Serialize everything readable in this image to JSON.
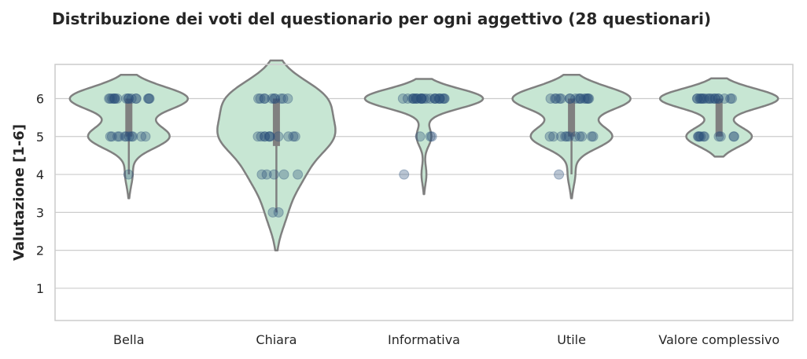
{
  "chart_data": {
    "type": "violin",
    "title": "Distribuzione dei voti del questionario per ogni aggettivo (28 questionari)",
    "xlabel": "",
    "ylabel": "Valutazione [1-6]",
    "ylim": [
      0.15,
      6.9
    ],
    "yticks": [
      1,
      2,
      3,
      4,
      5,
      6
    ],
    "grid": true,
    "categories": [
      "Bella",
      "Chiara",
      "Informativa",
      "Utile",
      "Valore complessivo"
    ],
    "counts": [
      {
        "6": 16,
        "5": 11,
        "4": 1
      },
      {
        "6": 10,
        "5": 11,
        "4": 5,
        "3": 2
      },
      {
        "6": 24,
        "5": 3,
        "4": 1
      },
      {
        "6": 16,
        "5": 11,
        "4": 1
      },
      {
        "6": 18,
        "5": 10
      }
    ],
    "colors": {
      "violin_fill": "#c7e6d3",
      "violin_edge": "#808080",
      "box": "#808080",
      "points": "#2b4f7a",
      "grid": "#cccccc",
      "frame": "#cccccc"
    }
  }
}
